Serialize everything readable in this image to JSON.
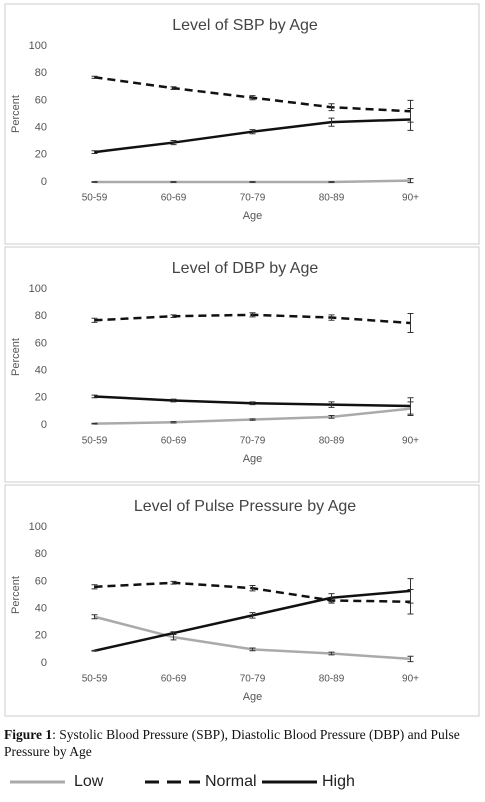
{
  "chart_data": [
    {
      "type": "line",
      "title": "Level of SBP by Age",
      "xlabel": "Age",
      "ylabel": "Percent",
      "categories": [
        "50-59",
        "60-69",
        "70-79",
        "80-89",
        "90+"
      ],
      "ylim": [
        0,
        100
      ],
      "yticks": [
        0,
        20,
        40,
        60,
        80,
        100
      ],
      "grid": false,
      "series": [
        {
          "color": "#aaaaaa",
          "dash": false,
          "values": [
            0,
            0,
            0,
            0,
            1
          ],
          "errors": [
            0.3,
            0.3,
            0.3,
            0.3,
            1.5
          ]
        },
        {
          "color": "#111111",
          "dash": true,
          "values": [
            77,
            69,
            62,
            55,
            52
          ],
          "errors": [
            0.8,
            1,
            1.5,
            2.5,
            8
          ]
        },
        {
          "color": "#111111",
          "dash": false,
          "values": [
            22,
            29,
            37,
            44,
            46
          ],
          "errors": [
            1,
            1.5,
            1.5,
            3,
            8
          ]
        }
      ]
    },
    {
      "type": "line",
      "title": "Level of DBP by Age",
      "xlabel": "Age",
      "ylabel": "Percent",
      "categories": [
        "50-59",
        "60-69",
        "70-79",
        "80-89",
        "90+"
      ],
      "ylim": [
        0,
        100
      ],
      "yticks": [
        0,
        20,
        40,
        60,
        80,
        100
      ],
      "grid": false,
      "series": [
        {
          "color": "#aaaaaa",
          "dash": false,
          "values": [
            1,
            2,
            4,
            6,
            12
          ],
          "errors": [
            0.3,
            0.5,
            0.5,
            1,
            5
          ]
        },
        {
          "color": "#111111",
          "dash": true,
          "values": [
            77,
            80,
            81,
            79,
            75
          ],
          "errors": [
            1.5,
            1,
            1.5,
            2,
            7
          ]
        },
        {
          "color": "#111111",
          "dash": false,
          "values": [
            21,
            18,
            16,
            15,
            14
          ],
          "errors": [
            1,
            1,
            1,
            2,
            6
          ]
        }
      ]
    },
    {
      "type": "line",
      "title": "Level of Pulse Pressure by Age",
      "xlabel": "Age",
      "ylabel": "Percent",
      "categories": [
        "50-59",
        "60-69",
        "70-79",
        "80-89",
        "90+"
      ],
      "ylim": [
        0,
        100
      ],
      "yticks": [
        0,
        20,
        40,
        60,
        80,
        100
      ],
      "grid": false,
      "series": [
        {
          "color": "#aaaaaa",
          "dash": false,
          "values": [
            34,
            19,
            10,
            7,
            3
          ],
          "errors": [
            1.5,
            2,
            1,
            1,
            2
          ]
        },
        {
          "color": "#111111",
          "dash": true,
          "values": [
            56,
            59,
            55,
            46,
            45
          ],
          "errors": [
            1.5,
            1,
            2,
            2,
            9
          ]
        },
        {
          "color": "#111111",
          "dash": false,
          "values": [
            9,
            22,
            35,
            48,
            53
          ],
          "errors": [
            0.3,
            1,
            2,
            3,
            9
          ]
        }
      ]
    }
  ],
  "legend": [
    "Low",
    "Normal",
    "High"
  ],
  "caption": {
    "label": "Figure 1",
    "text": ": Systolic Blood Pressure (SBP), Diastolic Blood Pressure (DBP) and Pulse Pressure by Age"
  }
}
